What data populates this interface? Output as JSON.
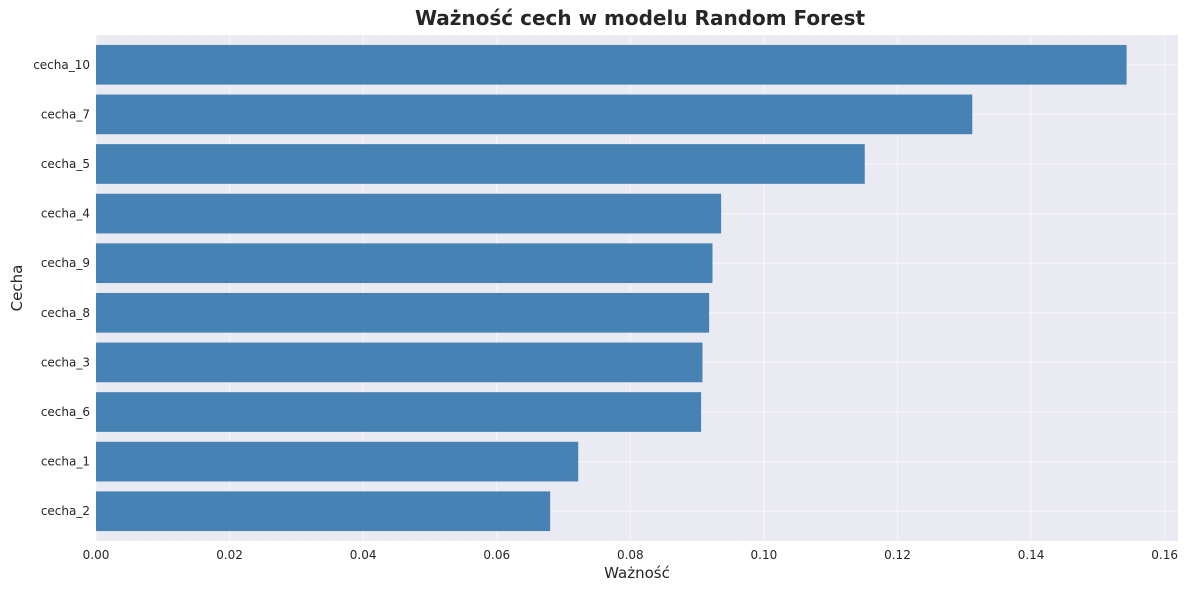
{
  "chart_data": {
    "type": "bar",
    "orientation": "horizontal",
    "title": "Ważność cech w modelu Random Forest",
    "xlabel": "Ważność",
    "ylabel": "Cecha",
    "categories": [
      "cecha_10",
      "cecha_7",
      "cecha_5",
      "cecha_4",
      "cecha_9",
      "cecha_8",
      "cecha_3",
      "cecha_6",
      "cecha_1",
      "cecha_2"
    ],
    "values": [
      0.1543,
      0.1312,
      0.1151,
      0.0936,
      0.0923,
      0.0918,
      0.0908,
      0.0906,
      0.0722,
      0.068
    ],
    "xlim": [
      0,
      0.162
    ],
    "xticks": [
      0,
      0.02,
      0.04,
      0.06,
      0.08,
      0.1,
      0.12,
      0.14,
      0.16
    ],
    "xtick_labels": [
      "0.00",
      "0.02",
      "0.04",
      "0.06",
      "0.08",
      "0.10",
      "0.12",
      "0.14",
      "0.16"
    ],
    "grid": true,
    "colors": {
      "bar": "#4682b4",
      "background": "#eaeaf2",
      "grid": "#ffffff"
    }
  }
}
